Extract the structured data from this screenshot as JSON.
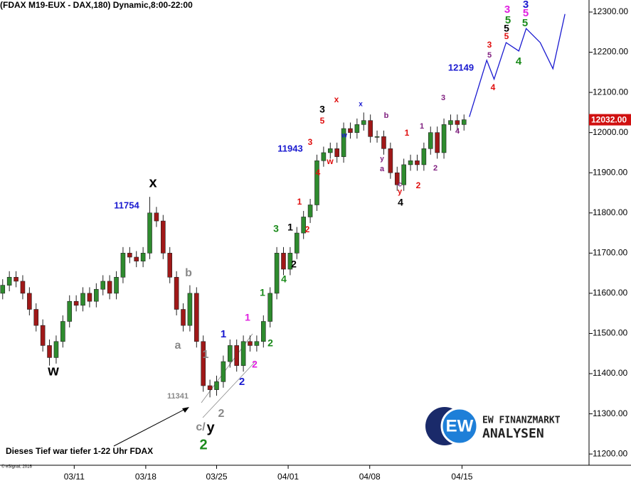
{
  "chart_data": {
    "type": "candlestick",
    "title": "(FDAX M19-EUX - DAX,180) Dynamic,8:00-22:00",
    "open": [
      11600,
      11620,
      11640,
      11630,
      11600,
      11560,
      11520,
      11470,
      11440,
      11480,
      11530,
      11580,
      11570,
      11600,
      11580,
      11610,
      11630,
      11600,
      11640,
      11700,
      11690,
      11680,
      11700,
      11800,
      11780,
      11700,
      11640,
      11560,
      11520,
      11600,
      11480,
      11370,
      11360,
      11380,
      11430,
      11470,
      11420,
      11480,
      11470,
      11480,
      11530,
      11600,
      11700,
      11660,
      11700,
      11750,
      11790,
      11820,
      11930,
      11950,
      11960,
      11940,
      12010,
      12000,
      12020,
      12030,
      11990,
      11990,
      11960,
      11900,
      11870,
      11920,
      11930,
      11920,
      11960,
      12000,
      11950,
      12020,
      12030,
      12020
    ],
    "high": [
      11635,
      11655,
      11655,
      11645,
      11615,
      11575,
      11535,
      11485,
      11495,
      11545,
      11595,
      11595,
      11615,
      11615,
      11625,
      11645,
      11645,
      11655,
      11715,
      11715,
      11705,
      11715,
      11840,
      11815,
      11795,
      11715,
      11655,
      11575,
      11620,
      11615,
      11495,
      11385,
      11395,
      11445,
      11485,
      11485,
      11495,
      11495,
      11495,
      11545,
      11615,
      11715,
      11715,
      11715,
      11765,
      11805,
      11835,
      11945,
      11965,
      11975,
      11975,
      12025,
      12025,
      12035,
      12050,
      12045,
      12005,
      12005,
      11975,
      11915,
      11935,
      11945,
      11945,
      11975,
      12015,
      12015,
      12035,
      12045,
      12045,
      12045
    ],
    "low": [
      11585,
      11605,
      11615,
      11585,
      11545,
      11505,
      11455,
      11420,
      11425,
      11465,
      11515,
      11555,
      11555,
      11565,
      11565,
      11595,
      11585,
      11585,
      11625,
      11675,
      11665,
      11665,
      11685,
      11765,
      11685,
      11625,
      11545,
      11505,
      11505,
      11465,
      11355,
      11341,
      11345,
      11365,
      11415,
      11405,
      11405,
      11455,
      11455,
      11465,
      11515,
      11585,
      11645,
      11645,
      11685,
      11735,
      11775,
      11805,
      11915,
      11935,
      11925,
      11925,
      11985,
      11985,
      12005,
      11975,
      11975,
      11945,
      11885,
      11855,
      11855,
      11905,
      11905,
      11905,
      11945,
      11935,
      11935,
      12005,
      12005,
      12005
    ],
    "close": [
      11620,
      11640,
      11630,
      11600,
      11560,
      11520,
      11470,
      11440,
      11480,
      11530,
      11580,
      11570,
      11600,
      11580,
      11610,
      11630,
      11600,
      11640,
      11700,
      11690,
      11680,
      11700,
      11800,
      11780,
      11700,
      11640,
      11560,
      11520,
      11600,
      11480,
      11370,
      11360,
      11380,
      11430,
      11470,
      11420,
      11480,
      11470,
      11480,
      11530,
      11600,
      11700,
      11660,
      11700,
      11750,
      11790,
      11820,
      11930,
      11950,
      11960,
      11940,
      12010,
      12000,
      12020,
      12030,
      11990,
      11990,
      11960,
      11900,
      11870,
      11920,
      11930,
      11920,
      11960,
      12000,
      11950,
      12020,
      12030,
      12020,
      12032
    ],
    "up_color": "#2e8b2e",
    "down_color": "#a01818",
    "xlim": [
      -0.4,
      87.7
    ],
    "xticks": [
      {
        "value": 10.7,
        "label": "03/11"
      },
      {
        "value": 21.4,
        "label": "03/18"
      },
      {
        "value": 32,
        "label": "03/25"
      },
      {
        "value": 42.7,
        "label": "04/01"
      },
      {
        "value": 54.9,
        "label": "04/08"
      },
      {
        "value": 68.7,
        "label": "04/15"
      }
    ],
    "ylim": [
      11172,
      12330
    ],
    "yticks": [
      {
        "value": 11200,
        "label": "11200.00"
      },
      {
        "value": 11300,
        "label": "11300.00"
      },
      {
        "value": 11400,
        "label": "11400.00"
      },
      {
        "value": 11500,
        "label": "11500.00"
      },
      {
        "value": 11600,
        "label": "11600.00"
      },
      {
        "value": 11700,
        "label": "11700.00"
      },
      {
        "value": 11800,
        "label": "11800.00"
      },
      {
        "value": 11900,
        "label": "11900.00"
      },
      {
        "value": 12000,
        "label": "12000.00"
      },
      {
        "value": 12100,
        "label": "12100.00"
      },
      {
        "value": 12200,
        "label": "12200.00"
      },
      {
        "value": 12300,
        "label": "12300.00"
      }
    ],
    "last_price": {
      "value": 12032,
      "label": "12032.00",
      "color": "#d01010"
    },
    "projection": {
      "color": "#1a1ad0",
      "x": [
        69.8,
        72.4,
        73.5,
        75.3,
        77.2,
        78.3,
        80.4,
        82.3,
        84.1
      ],
      "values": [
        12039,
        12180,
        12133,
        12224,
        12203,
        12259,
        12224,
        12159,
        12295
      ]
    },
    "annotations": [
      {
        "text": "w",
        "color": "#000000"
      },
      {
        "text": "x",
        "color": "#000000"
      },
      {
        "text": "11754",
        "color": "#1a1ad0"
      },
      {
        "text": "a",
        "color": "#888888"
      },
      {
        "text": "b",
        "color": "#888888"
      },
      {
        "text": "1",
        "color": "#888888"
      },
      {
        "text": "11341",
        "color": "#888888"
      },
      {
        "text": "c/",
        "color": "#888888"
      },
      {
        "text": "y",
        "color": "#000000"
      },
      {
        "text": "2",
        "color": "#1a8a1a"
      },
      {
        "text": "2",
        "color": "#888888"
      },
      {
        "text": "1",
        "color": "#1a1ad0"
      },
      {
        "text": "2",
        "color": "#1a1ad0"
      },
      {
        "text": "1",
        "color": "#e020e0"
      },
      {
        "text": "2",
        "color": "#e020e0"
      },
      {
        "text": "1",
        "color": "#1a8a1a"
      },
      {
        "text": "2",
        "color": "#1a8a1a"
      },
      {
        "text": "3",
        "color": "#1a8a1a"
      },
      {
        "text": "1",
        "color": "#000000"
      },
      {
        "text": "2",
        "color": "#000000"
      },
      {
        "text": "4",
        "color": "#1a8a1a"
      },
      {
        "text": "2",
        "color": "#e01010"
      },
      {
        "text": "1",
        "color": "#e01010"
      },
      {
        "text": "11943",
        "color": "#1a1ad0"
      },
      {
        "text": "3",
        "color": "#e01010"
      },
      {
        "text": "4",
        "color": "#e01010"
      },
      {
        "text": "5",
        "color": "#e01010"
      },
      {
        "text": "3",
        "color": "#000000"
      },
      {
        "text": "w",
        "color": "#e01010"
      },
      {
        "text": "x",
        "color": "#e01010"
      },
      {
        "text": "w",
        "color": "#1a1ad0"
      },
      {
        "text": "x",
        "color": "#1a1ad0"
      },
      {
        "text": "b",
        "color": "#802080"
      },
      {
        "text": "y",
        "color": "#802080"
      },
      {
        "text": "a",
        "color": "#802080"
      },
      {
        "text": "c",
        "color": "#802080"
      },
      {
        "text": "y",
        "color": "#e01010"
      },
      {
        "text": "4",
        "color": "#000000"
      },
      {
        "text": "1",
        "color": "#e01010"
      },
      {
        "text": "2",
        "color": "#e01010"
      },
      {
        "text": "1",
        "color": "#802080"
      },
      {
        "text": "2",
        "color": "#802080"
      },
      {
        "text": "3",
        "color": "#802080"
      },
      {
        "text": "4",
        "color": "#802080"
      },
      {
        "text": "12149",
        "color": "#1a1ad0"
      },
      {
        "text": "3",
        "color": "#e01010"
      },
      {
        "text": "5",
        "color": "#802080"
      },
      {
        "text": "4",
        "color": "#e01010"
      },
      {
        "text": "3",
        "color": "#e020e0"
      },
      {
        "text": "5",
        "color": "#1a8a1a"
      },
      {
        "text": "5",
        "color": "#000000"
      },
      {
        "text": "5",
        "color": "#e01010"
      },
      {
        "text": "4",
        "color": "#1a8a1a"
      },
      {
        "text": "3",
        "color": "#1a1ad0"
      },
      {
        "text": "5",
        "color": "#e020e0"
      },
      {
        "text": "5",
        "color": "#1a8a1a"
      }
    ],
    "note": "Dieses Tief war tiefer 1-22 Uhr FDAX",
    "copyright": "© eSignal, 2016",
    "logo": {
      "badge": "EW",
      "line1": "EW FINANZMARKT",
      "line2": "ANALYSEN"
    }
  }
}
